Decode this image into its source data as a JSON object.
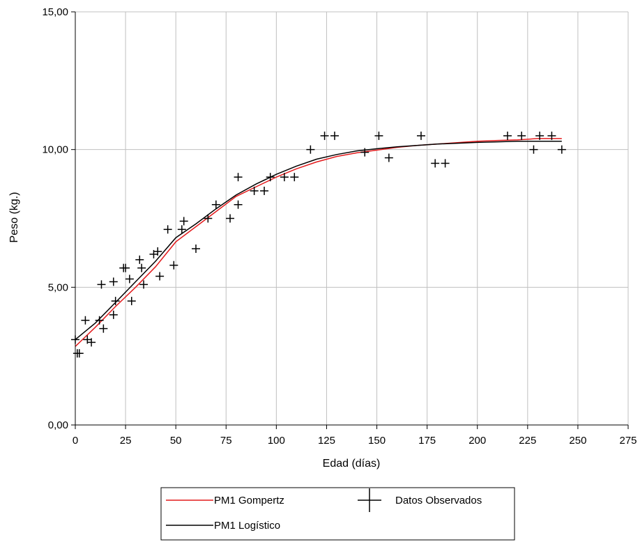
{
  "chart_data": {
    "type": "scatter",
    "xlabel": "Edad (días)",
    "ylabel": "Peso (kg.)",
    "xlim": [
      0,
      275
    ],
    "ylim": [
      0,
      15
    ],
    "x_ticks": [
      {
        "value": 0,
        "label": "0"
      },
      {
        "value": 25,
        "label": "25"
      },
      {
        "value": 50,
        "label": "50"
      },
      {
        "value": 75,
        "label": "75"
      },
      {
        "value": 100,
        "label": "100"
      },
      {
        "value": 125,
        "label": "125"
      },
      {
        "value": 150,
        "label": "150"
      },
      {
        "value": 175,
        "label": "175"
      },
      {
        "value": 200,
        "label": "200"
      },
      {
        "value": 225,
        "label": "225"
      },
      {
        "value": 250,
        "label": "250"
      },
      {
        "value": 275,
        "label": "275"
      }
    ],
    "y_ticks": [
      {
        "value": 0,
        "label": "0,00"
      },
      {
        "value": 5,
        "label": "5,00"
      },
      {
        "value": 10,
        "label": "10,00"
      },
      {
        "value": 15,
        "label": "15,00"
      }
    ],
    "grid": true,
    "legend_position": "bottom",
    "series": [
      {
        "name": "PM1 Gompertz",
        "kind": "line",
        "color": "#e31a1c",
        "x": [
          0,
          10,
          20,
          30,
          40,
          50,
          60,
          70,
          80,
          90,
          100,
          110,
          120,
          130,
          140,
          150,
          160,
          170,
          180,
          190,
          200,
          210,
          220,
          230,
          242
        ],
        "y": [
          2.85,
          3.55,
          4.3,
          5.0,
          5.75,
          6.65,
          7.2,
          7.75,
          8.3,
          8.65,
          9.0,
          9.3,
          9.55,
          9.75,
          9.88,
          9.98,
          10.08,
          10.15,
          10.2,
          10.25,
          10.3,
          10.33,
          10.35,
          10.4,
          10.4
        ]
      },
      {
        "name": "PM1 Logístico",
        "kind": "line",
        "color": "#000000",
        "x": [
          0,
          10,
          20,
          30,
          40,
          50,
          60,
          70,
          80,
          90,
          100,
          110,
          120,
          130,
          140,
          150,
          160,
          170,
          180,
          190,
          200,
          210,
          220,
          230,
          242
        ],
        "y": [
          3.1,
          3.7,
          4.45,
          5.2,
          5.95,
          6.8,
          7.3,
          7.85,
          8.35,
          8.75,
          9.1,
          9.4,
          9.65,
          9.82,
          9.95,
          10.03,
          10.1,
          10.15,
          10.2,
          10.23,
          10.26,
          10.28,
          10.3,
          10.3,
          10.3
        ]
      },
      {
        "name": "Datos Observados",
        "kind": "marker",
        "color": "#000000",
        "x": [
          0,
          1,
          2,
          5,
          6,
          8,
          12,
          13,
          14,
          19,
          19,
          20,
          24,
          25,
          27,
          28,
          32,
          33,
          34,
          39,
          41,
          42,
          46,
          49,
          53,
          54,
          60,
          66,
          70,
          77,
          81,
          81,
          89,
          94,
          97,
          104,
          109,
          117,
          124,
          129,
          144,
          151,
          156,
          172,
          179,
          184,
          215,
          222,
          228,
          231,
          237,
          242
        ],
        "y": [
          3.1,
          2.6,
          2.6,
          3.8,
          3.1,
          3.0,
          3.8,
          5.1,
          3.5,
          5.2,
          4.0,
          4.5,
          5.7,
          5.7,
          5.3,
          4.5,
          6.0,
          5.7,
          5.1,
          6.2,
          6.3,
          5.4,
          7.1,
          5.8,
          7.1,
          7.4,
          6.4,
          7.5,
          8.0,
          7.5,
          9.0,
          8.0,
          8.5,
          8.5,
          9.0,
          9.0,
          9.0,
          10.0,
          10.5,
          10.5,
          9.9,
          10.5,
          9.7,
          10.5,
          9.5,
          9.5,
          10.5,
          10.5,
          10.0,
          10.5,
          10.5,
          10.0
        ]
      }
    ]
  }
}
